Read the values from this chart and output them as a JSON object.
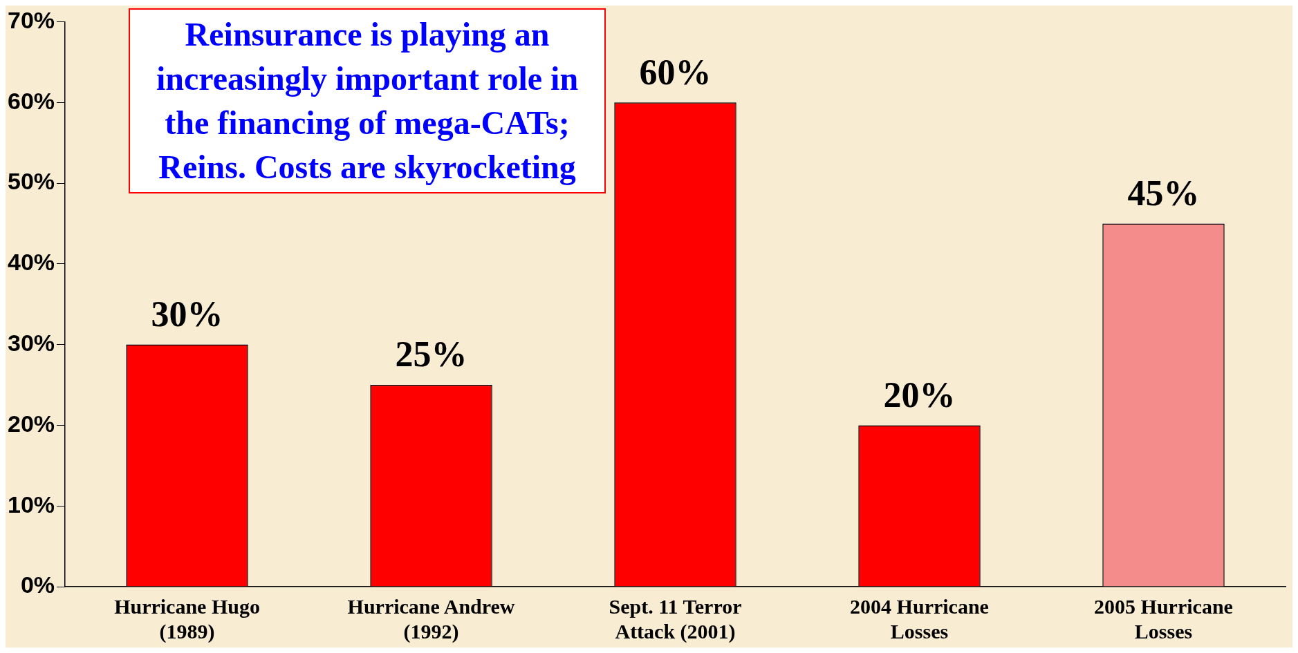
{
  "chart_data": {
    "type": "bar",
    "categories": [
      "Hurricane Hugo\n(1989)",
      "Hurricane Andrew\n(1992)",
      "Sept. 11 Terror\nAttack (2001)",
      "2004 Hurricane\nLosses",
      "2005 Hurricane\nLosses"
    ],
    "values": [
      30,
      25,
      60,
      20,
      45
    ],
    "colors": [
      "#ff0000",
      "#ff0000",
      "#ff0000",
      "#ff0000",
      "#f58c8c"
    ],
    "value_labels": [
      "30%",
      "25%",
      "60%",
      "20%",
      "45%"
    ],
    "ylim": [
      0,
      70
    ],
    "yticks": [
      {
        "value": 0,
        "label": "0%"
      },
      {
        "value": 10,
        "label": "10%"
      },
      {
        "value": 20,
        "label": "20%"
      },
      {
        "value": 30,
        "label": "30%"
      },
      {
        "value": 40,
        "label": "40%"
      },
      {
        "value": 50,
        "label": "50%"
      },
      {
        "value": 60,
        "label": "60%"
      },
      {
        "value": 70,
        "label": "70%"
      }
    ],
    "grid": false,
    "legend": false,
    "annotations": [
      "Reinsurance is playing an increasingly important role in the financing of mega-CATs; Reins. Costs are skyrocketing"
    ]
  }
}
